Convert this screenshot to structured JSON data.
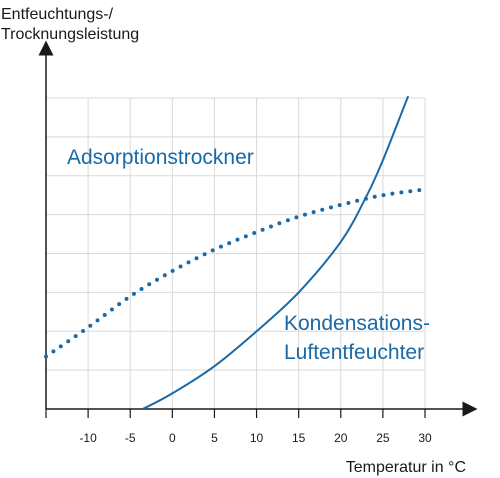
{
  "chart_data": {
    "type": "line",
    "ylabel_lines": [
      "Entfeuchtungs-/",
      "Trocknungsleistung"
    ],
    "xlabel": "Temperatur in °C",
    "x_ticks": [
      -10,
      -5,
      0,
      5,
      10,
      15,
      20,
      25,
      30
    ],
    "xlim": [
      -15,
      30
    ],
    "ylim": [
      0,
      8
    ],
    "grid": true,
    "colors": {
      "series": "#1a6aa8",
      "grid": "#d9d9d9",
      "axis": "#1a1a1a"
    },
    "series": [
      {
        "name": "Adsorptionstrockner",
        "style": "dotted",
        "label_lines": [
          "Adsorptionstrockner"
        ],
        "x": [
          -15,
          -10,
          -5,
          0,
          5,
          10,
          15,
          20,
          25,
          30
        ],
        "y": [
          1.35,
          2.1,
          2.9,
          3.55,
          4.1,
          4.55,
          4.95,
          5.25,
          5.5,
          5.65
        ]
      },
      {
        "name": "Kondensations-Luftentfeuchter",
        "style": "solid",
        "label_lines": [
          "Kondensations-",
          "Luftentfeuchter"
        ],
        "x": [
          -3.5,
          0,
          5,
          10,
          15,
          20,
          23,
          25,
          28
        ],
        "y": [
          0,
          0.4,
          1.1,
          2.0,
          3.0,
          4.3,
          5.45,
          6.4,
          8.05
        ]
      }
    ]
  }
}
